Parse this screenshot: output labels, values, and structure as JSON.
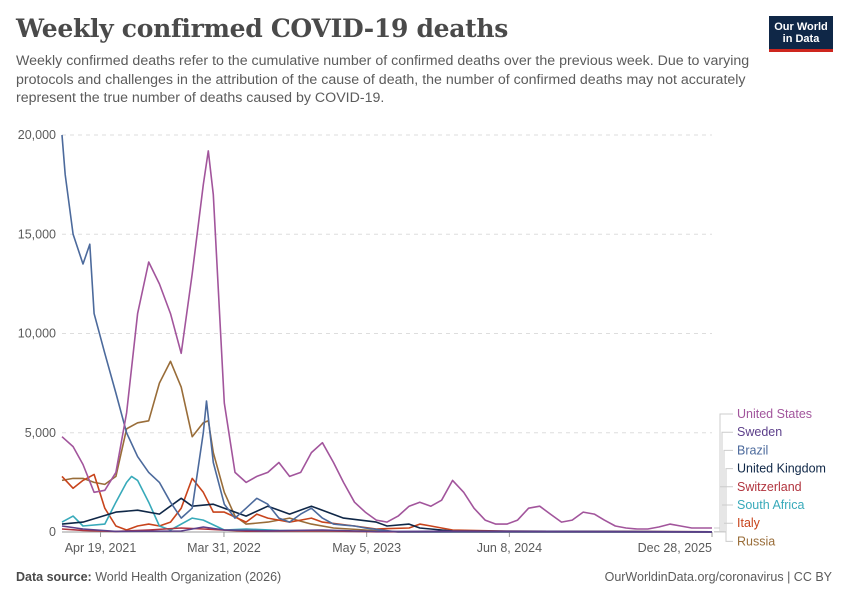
{
  "header": {
    "title": "Weekly confirmed COVID-19 deaths",
    "subtitle": "Weekly confirmed deaths refer to the cumulative number of confirmed deaths over the previous week. Due to varying protocols and challenges in the attribution of the cause of death, the number of confirmed deaths may not accurately represent the true number of deaths caused by COVID-19.",
    "logo_line1": "Our World",
    "logo_line2": "in Data"
  },
  "footer": {
    "source_label": "Data source:",
    "source_text": "World Health Organization (2026)",
    "url": "OurWorldinData.org/coronavirus | CC BY"
  },
  "chart_data": {
    "type": "line",
    "title": "Weekly confirmed COVID-19 deaths",
    "ylim": [
      0,
      20000
    ],
    "yticks": [
      0,
      5000,
      10000,
      15000,
      20000
    ],
    "ytick_labels": [
      "0",
      "5,000",
      "10,000",
      "15,000",
      "20,000"
    ],
    "xlim": [
      "2021-01-01",
      "2025-12-28"
    ],
    "xticks": [
      "2021-04-19",
      "2022-03-31",
      "2023-05-05",
      "2024-06-08",
      "2025-12-28"
    ],
    "xtick_labels": [
      "Apr 19, 2021",
      "Mar 31, 2022",
      "May 5, 2023",
      "Jun 8, 2024",
      "Dec 28, 2025"
    ],
    "grid": "horizontal-dashed",
    "legend_placement": "right",
    "series": [
      {
        "name": "United States",
        "color": "#a2559c",
        "points": [
          [
            "2021-01-01",
            4800
          ],
          [
            "2021-02-01",
            4300
          ],
          [
            "2021-03-01",
            3400
          ],
          [
            "2021-04-01",
            2000
          ],
          [
            "2021-05-01",
            2100
          ],
          [
            "2021-06-01",
            3000
          ],
          [
            "2021-07-01",
            6000
          ],
          [
            "2021-08-01",
            11000
          ],
          [
            "2021-09-01",
            13600
          ],
          [
            "2021-10-01",
            12500
          ],
          [
            "2021-11-01",
            11000
          ],
          [
            "2021-12-01",
            9000
          ],
          [
            "2022-01-01",
            13000
          ],
          [
            "2022-02-01",
            17500
          ],
          [
            "2022-02-15",
            19200
          ],
          [
            "2022-03-01",
            17000
          ],
          [
            "2022-04-01",
            6500
          ],
          [
            "2022-05-01",
            3000
          ],
          [
            "2022-06-01",
            2500
          ],
          [
            "2022-07-01",
            2800
          ],
          [
            "2022-08-01",
            3000
          ],
          [
            "2022-09-01",
            3500
          ],
          [
            "2022-10-01",
            2800
          ],
          [
            "2022-11-01",
            3000
          ],
          [
            "2022-12-01",
            4000
          ],
          [
            "2023-01-01",
            4500
          ],
          [
            "2023-02-01",
            3500
          ],
          [
            "2023-03-01",
            2500
          ],
          [
            "2023-04-01",
            1500
          ],
          [
            "2023-05-01",
            1000
          ],
          [
            "2023-06-01",
            600
          ],
          [
            "2023-07-01",
            500
          ],
          [
            "2023-08-01",
            800
          ],
          [
            "2023-09-01",
            1300
          ],
          [
            "2023-10-01",
            1500
          ],
          [
            "2023-11-01",
            1300
          ],
          [
            "2023-12-01",
            1600
          ],
          [
            "2024-01-01",
            2600
          ],
          [
            "2024-02-01",
            2000
          ],
          [
            "2024-03-01",
            1200
          ],
          [
            "2024-04-01",
            600
          ],
          [
            "2024-05-01",
            400
          ],
          [
            "2024-06-01",
            400
          ],
          [
            "2024-07-01",
            600
          ],
          [
            "2024-08-01",
            1200
          ],
          [
            "2024-09-01",
            1300
          ],
          [
            "2024-10-01",
            900
          ],
          [
            "2024-11-01",
            500
          ],
          [
            "2024-12-01",
            600
          ],
          [
            "2025-01-01",
            1000
          ],
          [
            "2025-02-01",
            900
          ],
          [
            "2025-03-01",
            600
          ],
          [
            "2025-04-01",
            300
          ],
          [
            "2025-05-01",
            200
          ],
          [
            "2025-06-01",
            150
          ],
          [
            "2025-07-01",
            150
          ],
          [
            "2025-08-01",
            250
          ],
          [
            "2025-09-01",
            400
          ],
          [
            "2025-10-01",
            300
          ],
          [
            "2025-11-01",
            200
          ],
          [
            "2025-12-28",
            200
          ]
        ]
      },
      {
        "name": "Sweden",
        "color": "#5c3f8a",
        "points": [
          [
            "2021-01-01",
            300
          ],
          [
            "2021-03-01",
            150
          ],
          [
            "2021-06-01",
            30
          ],
          [
            "2021-12-01",
            50
          ],
          [
            "2022-02-01",
            250
          ],
          [
            "2022-04-01",
            100
          ],
          [
            "2022-08-01",
            60
          ],
          [
            "2023-01-01",
            100
          ],
          [
            "2023-06-01",
            20
          ],
          [
            "2024-01-01",
            40
          ],
          [
            "2025-12-28",
            5
          ]
        ]
      },
      {
        "name": "Brazil",
        "color": "#4c6a9c",
        "points": [
          [
            "2021-01-01",
            20000
          ],
          [
            "2021-01-10",
            18000
          ],
          [
            "2021-02-01",
            15000
          ],
          [
            "2021-03-01",
            13500
          ],
          [
            "2021-03-20",
            14500
          ],
          [
            "2021-04-01",
            11000
          ],
          [
            "2021-05-01",
            9000
          ],
          [
            "2021-06-01",
            7000
          ],
          [
            "2021-07-01",
            5000
          ],
          [
            "2021-08-01",
            3800
          ],
          [
            "2021-09-01",
            3000
          ],
          [
            "2021-10-01",
            2500
          ],
          [
            "2021-11-01",
            1500
          ],
          [
            "2021-12-01",
            700
          ],
          [
            "2022-01-01",
            1200
          ],
          [
            "2022-02-01",
            5000
          ],
          [
            "2022-02-10",
            6600
          ],
          [
            "2022-03-01",
            3500
          ],
          [
            "2022-04-01",
            1400
          ],
          [
            "2022-05-01",
            700
          ],
          [
            "2022-06-01",
            1200
          ],
          [
            "2022-07-01",
            1700
          ],
          [
            "2022-08-01",
            1400
          ],
          [
            "2022-09-01",
            700
          ],
          [
            "2022-10-01",
            500
          ],
          [
            "2022-11-01",
            900
          ],
          [
            "2022-12-01",
            1200
          ],
          [
            "2023-01-01",
            700
          ],
          [
            "2023-02-01",
            400
          ],
          [
            "2023-03-01",
            350
          ],
          [
            "2023-04-01",
            300
          ],
          [
            "2023-05-01",
            200
          ],
          [
            "2023-08-01",
            0
          ],
          [
            "2025-12-28",
            0
          ]
        ]
      },
      {
        "name": "United Kingdom",
        "color": "#0f2747",
        "points": [
          [
            "2021-01-01",
            400
          ],
          [
            "2021-03-01",
            500
          ],
          [
            "2021-06-01",
            1000
          ],
          [
            "2021-08-01",
            1100
          ],
          [
            "2021-10-01",
            900
          ],
          [
            "2021-12-01",
            1700
          ],
          [
            "2022-01-01",
            1300
          ],
          [
            "2022-03-01",
            1400
          ],
          [
            "2022-04-01",
            1200
          ],
          [
            "2022-06-01",
            800
          ],
          [
            "2022-08-01",
            1300
          ],
          [
            "2022-10-01",
            900
          ],
          [
            "2022-12-01",
            1300
          ],
          [
            "2023-01-01",
            1100
          ],
          [
            "2023-03-01",
            700
          ],
          [
            "2023-06-01",
            500
          ],
          [
            "2023-07-01",
            300
          ],
          [
            "2023-09-01",
            400
          ],
          [
            "2023-10-01",
            200
          ],
          [
            "2024-01-01",
            50
          ],
          [
            "2025-12-28",
            10
          ]
        ]
      },
      {
        "name": "Switzerland",
        "color": "#b1343e",
        "points": [
          [
            "2021-01-01",
            150
          ],
          [
            "2021-03-01",
            80
          ],
          [
            "2021-06-01",
            30
          ],
          [
            "2021-09-01",
            100
          ],
          [
            "2021-12-01",
            200
          ],
          [
            "2022-02-01",
            150
          ],
          [
            "2022-06-01",
            40
          ],
          [
            "2023-01-01",
            60
          ],
          [
            "2023-06-01",
            10
          ],
          [
            "2025-12-28",
            3
          ]
        ]
      },
      {
        "name": "South Africa",
        "color": "#38aaba",
        "points": [
          [
            "2021-01-01",
            500
          ],
          [
            "2021-02-01",
            800
          ],
          [
            "2021-03-01",
            300
          ],
          [
            "2021-05-01",
            400
          ],
          [
            "2021-06-01",
            1500
          ],
          [
            "2021-07-01",
            2500
          ],
          [
            "2021-07-15",
            2800
          ],
          [
            "2021-08-01",
            2600
          ],
          [
            "2021-09-01",
            1500
          ],
          [
            "2021-10-01",
            300
          ],
          [
            "2021-11-01",
            100
          ],
          [
            "2022-01-01",
            700
          ],
          [
            "2022-02-01",
            600
          ],
          [
            "2022-04-01",
            100
          ],
          [
            "2022-06-01",
            150
          ],
          [
            "2022-09-01",
            80
          ],
          [
            "2023-01-01",
            50
          ],
          [
            "2023-06-01",
            20
          ],
          [
            "2025-12-28",
            0
          ]
        ]
      },
      {
        "name": "Italy",
        "color": "#c8441c",
        "points": [
          [
            "2021-01-01",
            2800
          ],
          [
            "2021-02-01",
            2200
          ],
          [
            "2021-03-01",
            2600
          ],
          [
            "2021-04-01",
            2900
          ],
          [
            "2021-05-01",
            1200
          ],
          [
            "2021-06-01",
            300
          ],
          [
            "2021-07-01",
            100
          ],
          [
            "2021-08-01",
            300
          ],
          [
            "2021-09-01",
            400
          ],
          [
            "2021-10-01",
            300
          ],
          [
            "2021-11-01",
            500
          ],
          [
            "2021-12-01",
            1200
          ],
          [
            "2022-01-01",
            2700
          ],
          [
            "2022-02-01",
            2000
          ],
          [
            "2022-03-01",
            1000
          ],
          [
            "2022-04-01",
            1000
          ],
          [
            "2022-06-01",
            500
          ],
          [
            "2022-07-01",
            900
          ],
          [
            "2022-08-01",
            700
          ],
          [
            "2022-10-01",
            500
          ],
          [
            "2022-11-01",
            600
          ],
          [
            "2022-12-01",
            700
          ],
          [
            "2023-01-01",
            500
          ],
          [
            "2023-04-01",
            300
          ],
          [
            "2023-06-01",
            150
          ],
          [
            "2023-09-01",
            200
          ],
          [
            "2023-10-01",
            400
          ],
          [
            "2023-11-01",
            300
          ],
          [
            "2023-12-01",
            200
          ],
          [
            "2024-01-01",
            100
          ],
          [
            "2024-06-01",
            40
          ],
          [
            "2025-12-28",
            10
          ]
        ]
      },
      {
        "name": "Russia",
        "color": "#996d39",
        "points": [
          [
            "2021-01-01",
            2600
          ],
          [
            "2021-02-01",
            2700
          ],
          [
            "2021-03-01",
            2700
          ],
          [
            "2021-04-01",
            2500
          ],
          [
            "2021-05-01",
            2400
          ],
          [
            "2021-06-01",
            2800
          ],
          [
            "2021-07-01",
            5200
          ],
          [
            "2021-08-01",
            5500
          ],
          [
            "2021-09-01",
            5600
          ],
          [
            "2021-10-01",
            7500
          ],
          [
            "2021-11-01",
            8600
          ],
          [
            "2021-12-01",
            7300
          ],
          [
            "2022-01-01",
            4800
          ],
          [
            "2022-02-01",
            5500
          ],
          [
            "2022-02-15",
            5600
          ],
          [
            "2022-03-01",
            4000
          ],
          [
            "2022-04-01",
            2000
          ],
          [
            "2022-05-01",
            800
          ],
          [
            "2022-06-01",
            400
          ],
          [
            "2022-08-01",
            500
          ],
          [
            "2022-10-01",
            700
          ],
          [
            "2022-12-01",
            400
          ],
          [
            "2023-02-01",
            200
          ],
          [
            "2023-05-01",
            100
          ],
          [
            "2023-08-01",
            0
          ],
          [
            "2025-12-28",
            0
          ]
        ]
      }
    ]
  }
}
